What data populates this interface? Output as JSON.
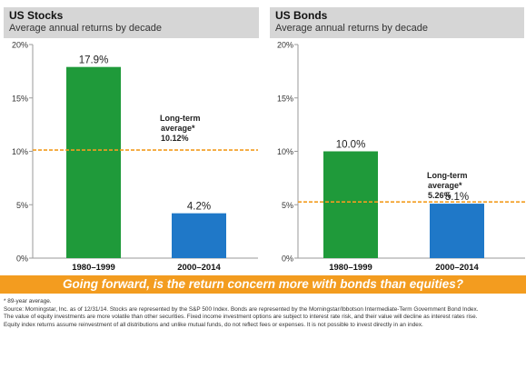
{
  "charts": [
    {
      "title": "US Stocks",
      "subtitle": "Average annual returns by decade"
    },
    {
      "title": "US Bonds",
      "subtitle": "Average annual returns by decade"
    }
  ],
  "chart_data": [
    {
      "type": "bar",
      "title": "US Stocks",
      "subtitle": "Average annual returns by decade",
      "categories": [
        "1980–1999",
        "2000–2014"
      ],
      "values": [
        17.9,
        4.2
      ],
      "data_labels": [
        "17.9%",
        "4.2%"
      ],
      "bar_colors": [
        "#1f9a3a",
        "#1f78c8"
      ],
      "ylim": [
        0,
        20
      ],
      "yticks": [
        0,
        5,
        10,
        15,
        20
      ],
      "ytick_labels": [
        "0%",
        "5%",
        "10%",
        "15%",
        "20%"
      ],
      "reference_line": {
        "value": 10.12,
        "label_lines": [
          "Long-term",
          "average*",
          "10.12%"
        ],
        "color": "#f39c1f"
      },
      "grid": false
    },
    {
      "type": "bar",
      "title": "US Bonds",
      "subtitle": "Average annual returns by decade",
      "categories": [
        "1980–1999",
        "2000–2014"
      ],
      "values": [
        10.0,
        5.1
      ],
      "data_labels": [
        "10.0%",
        "5.1%"
      ],
      "bar_colors": [
        "#1f9a3a",
        "#1f78c8"
      ],
      "ylim": [
        0,
        20
      ],
      "yticks": [
        0,
        5,
        10,
        15,
        20
      ],
      "ytick_labels": [
        "0%",
        "5%",
        "10%",
        "15%",
        "20%"
      ],
      "reference_line": {
        "value": 5.26,
        "label_lines": [
          "Long-term",
          "average*",
          "5.26%"
        ],
        "color": "#f39c1f"
      },
      "grid": false
    }
  ],
  "banner": "Going forward, is the return concern more with bonds than equities?",
  "footnotes": [
    "* 89-year average.",
    "Source: Morningstar, Inc. as of 12/31/14. Stocks are represented by the S&P 500 Index. Bonds are represented by the Morningstar/Ibbotson Intermediate-Term Government Bond Index.",
    "The value of equity investments are more volatile than other securities. Fixed income investment options are subject to interest rate risk, and their value will decline as interest rates rise.",
    "Equity index returns assume reinvestment of all distributions and unlike mutual funds, do not reflect fees or expenses. It is not possible to invest directly in an index."
  ],
  "colors": {
    "accent": "#f39c1f",
    "green": "#1f9a3a",
    "blue": "#1f78c8",
    "header_bg": "#d6d6d6"
  }
}
